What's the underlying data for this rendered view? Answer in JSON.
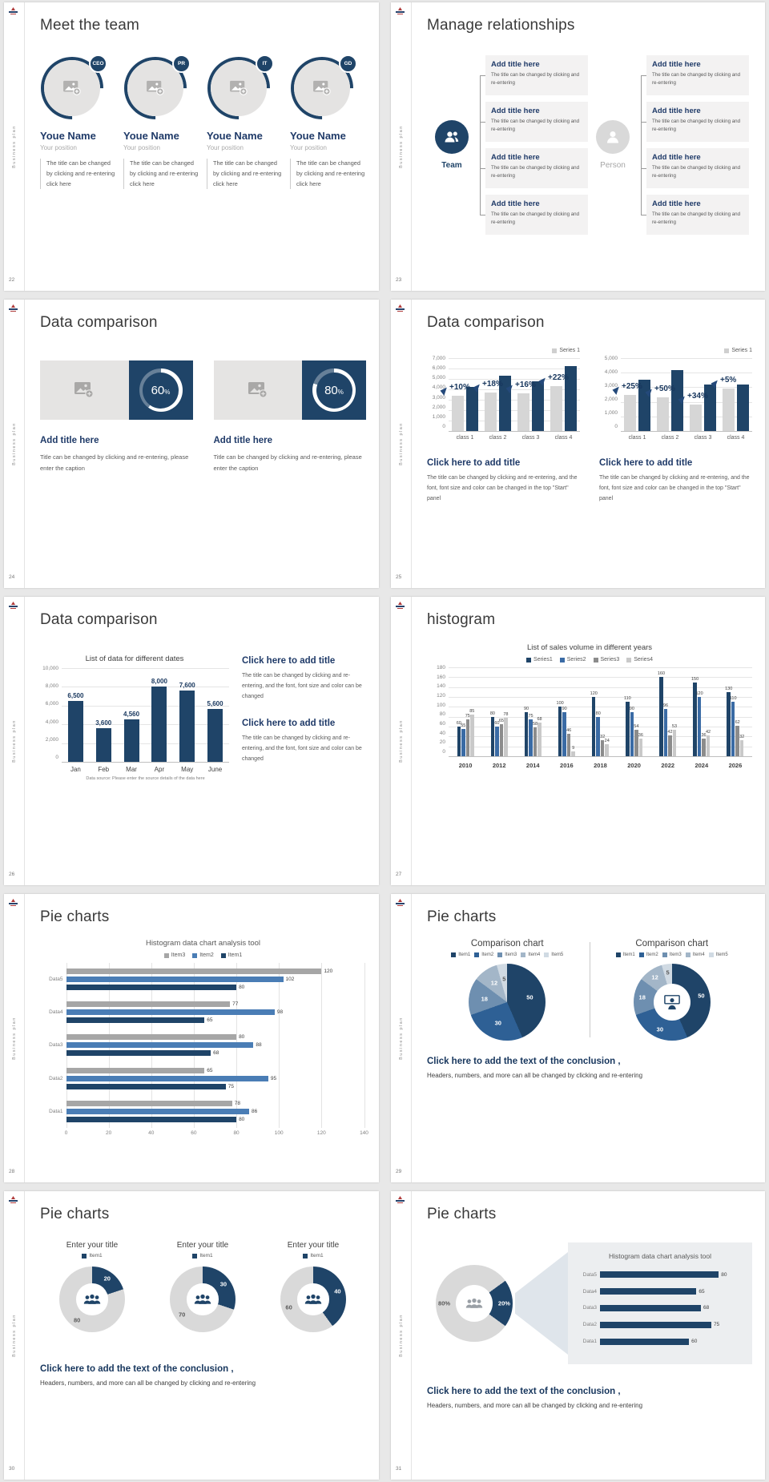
{
  "page": {
    "background": "#e8e8e8",
    "slide_background": "#ffffff"
  },
  "colors": {
    "navy": "#1f4468",
    "medblue": "#4a7db5",
    "blue2": "#2e6095",
    "gray": "#a6a6a6",
    "lightgray": "#d9d9d9",
    "heading_navy": "#1f3a68"
  },
  "sidebar": {
    "vertical_text": "Business plan"
  },
  "slides": {
    "s22": {
      "number": "22",
      "title": "Meet the team",
      "members": [
        {
          "badge": "CEO",
          "name": "Youe Name",
          "position": "Your position",
          "body": "The title can be changed by clicking and re-entering click here"
        },
        {
          "badge": "PR",
          "name": "Youe Name",
          "position": "Your position",
          "body": "The title can be changed by clicking and re-entering click here"
        },
        {
          "badge": "IT",
          "name": "Youe Name",
          "position": "Your position",
          "body": "The title can be changed by clicking and re-entering click here"
        },
        {
          "badge": "GD",
          "name": "Youe Name",
          "position": "Your position",
          "body": "The title can be changed by clicking and re-entering click here"
        }
      ]
    },
    "s23": {
      "number": "23",
      "title": "Manage relationships",
      "team_label": "Team",
      "person_label": "Person",
      "block_title": "Add title here",
      "block_body": "The title can be changed by clicking and re-entering"
    },
    "s24": {
      "number": "24",
      "title": "Data comparison",
      "cards": [
        {
          "title": "Add title here",
          "body": "Title can be changed by clicking and re-entering, please enter the caption"
        },
        {
          "title": "Add title here",
          "body": "Title can be changed by clicking and re-entering, please enter the caption"
        }
      ]
    },
    "s25": {
      "number": "25",
      "title": "Data comparison",
      "blocks": [
        {
          "title": "Click here to add title",
          "body": "The title can be changed by clicking and re-entering, and the font, font size and color can be changed in the top \"Start\" panel"
        },
        {
          "title": "Click here to add title",
          "body": "The title can be changed by clicking and re-entering, and the font, font size and color can be changed in the top \"Start\" panel"
        }
      ]
    },
    "s26": {
      "number": "26",
      "title": "Data comparison",
      "blocks": [
        {
          "title": "Click here to add title",
          "body": "The title can be changed by clicking and re-entering, and the font, font size and color can be changed"
        },
        {
          "title": "Click here to add title",
          "body": "The title can be changed by clicking and re-entering, and the font, font size and color can be changed"
        }
      ]
    },
    "s27": {
      "number": "27",
      "title": "histogram"
    },
    "s28": {
      "number": "28",
      "title": "Pie charts"
    },
    "s29": {
      "number": "29",
      "title": "Pie charts",
      "conclusion_title": "Click here to add the text of the conclusion ,",
      "conclusion_body": "Headers, numbers, and more can all be changed by clicking and re-entering"
    },
    "s30": {
      "number": "30",
      "title": "Pie charts",
      "conclusion_title": "Click here to add the text of the conclusion ,",
      "conclusion_body": "Headers, numbers, and more can all be changed by clicking and re-entering"
    },
    "s31": {
      "number": "31",
      "title": "Pie charts",
      "conclusion_title": "Click here to add the text of the conclusion ,",
      "conclusion_body": "Headers, numbers, and more can all be changed by clicking and re-entering"
    }
  },
  "chart_data": [
    {
      "id": "s24-donut-1",
      "type": "progress",
      "value": 60,
      "label": "60",
      "suffix": "%"
    },
    {
      "id": "s24-donut-2",
      "type": "progress",
      "value": 80,
      "label": "80",
      "suffix": "%"
    },
    {
      "id": "s25-chart-1",
      "type": "bar",
      "legend": [
        {
          "label": "Series 1",
          "color": "#cfcfcf"
        }
      ],
      "legend_pos": "right",
      "categories": [
        "class 1",
        "class 2",
        "class 3",
        "class 4"
      ],
      "series": [
        {
          "name": "Series 1",
          "color": "#d6d6d6",
          "values": [
            3400,
            3700,
            3600,
            4300
          ]
        },
        {
          "name": "Series 2",
          "color": "#1f4468",
          "values": [
            4200,
            5300,
            4800,
            6200
          ]
        }
      ],
      "annotations": [
        "+10%",
        "+18%",
        "+16%",
        "+22%"
      ],
      "ylim": [
        0,
        7000
      ],
      "ystep": 1000
    },
    {
      "id": "s25-chart-2",
      "type": "bar",
      "legend": [
        {
          "label": "Series 1",
          "color": "#cfcfcf"
        }
      ],
      "legend_pos": "right",
      "categories": [
        "class 1",
        "class 2",
        "class 3",
        "class 4"
      ],
      "series": [
        {
          "name": "Series 1",
          "color": "#d6d6d6",
          "values": [
            2500,
            2300,
            1800,
            2900
          ]
        },
        {
          "name": "Series 2",
          "color": "#1f4468",
          "values": [
            3500,
            4200,
            3200,
            3200
          ]
        }
      ],
      "annotations": [
        "+25%",
        "+50%",
        "+34%",
        "+5%"
      ],
      "ylim": [
        0,
        5000
      ],
      "ystep": 1000
    },
    {
      "id": "s26-chart",
      "type": "bar",
      "title": "List of data for different dates",
      "categories": [
        "Jan",
        "Feb",
        "Mar",
        "Apr",
        "May",
        "June"
      ],
      "series": [
        {
          "name": "data",
          "color": "#1f4468",
          "values": [
            6500,
            3600,
            4560,
            8000,
            7600,
            5600
          ]
        }
      ],
      "ylim": [
        0,
        10000
      ],
      "ystep": 2000,
      "data_labels": true,
      "caption": "Data source: Please enter the source details of the data here"
    },
    {
      "id": "s27-chart",
      "type": "bar",
      "title": "List of sales volume in different years",
      "legend": [
        {
          "label": "Series1",
          "color": "#1f4468"
        },
        {
          "label": "Series2",
          "color": "#3a6ba5"
        },
        {
          "label": "Series3",
          "color": "#8c8c8c"
        },
        {
          "label": "Series4",
          "color": "#c9c9c9"
        }
      ],
      "categories": [
        "2010",
        "2012",
        "2014",
        "2016",
        "2018",
        "2020",
        "2022",
        "2024",
        "2026"
      ],
      "series": [
        {
          "name": "Series1",
          "color": "#1f4468",
          "values": [
            60,
            80,
            90,
            100,
            120,
            110,
            160,
            150,
            130
          ]
        },
        {
          "name": "Series2",
          "color": "#3a6ba5",
          "values": [
            55,
            60,
            75,
            90,
            80,
            90,
            96,
            120,
            110
          ]
        },
        {
          "name": "Series3",
          "color": "#8c8c8c",
          "values": [
            75,
            65,
            58,
            46,
            32,
            54,
            42,
            36,
            62
          ]
        },
        {
          "name": "Series4",
          "color": "#c9c9c9",
          "values": [
            85,
            78,
            68,
            9,
            24,
            36,
            53,
            42,
            32
          ]
        }
      ],
      "ylim": [
        0,
        180
      ],
      "ystep": 20,
      "data_labels": true
    },
    {
      "id": "s28-chart",
      "type": "hbar",
      "title": "Histogram data chart analysis tool",
      "legend": [
        {
          "label": "Item3",
          "color": "#a6a6a6"
        },
        {
          "label": "Item2",
          "color": "#4a7db5"
        },
        {
          "label": "Item1",
          "color": "#1f4468"
        }
      ],
      "categories": [
        "Data5",
        "Data4",
        "Data3",
        "Data2",
        "Data1"
      ],
      "series": [
        {
          "name": "Item3",
          "color": "#a6a6a6",
          "values": [
            120,
            77,
            80,
            65,
            78
          ]
        },
        {
          "name": "Item2",
          "color": "#4a7db5",
          "values": [
            102,
            98,
            88,
            95,
            86
          ]
        },
        {
          "name": "Item1",
          "color": "#1f4468",
          "values": [
            80,
            65,
            68,
            75,
            80
          ]
        }
      ],
      "xlim": [
        0,
        140
      ],
      "xstep": 20,
      "data_labels": true
    },
    {
      "id": "s29-pie",
      "type": "pie",
      "title": "Comparison chart",
      "legend": [
        {
          "label": "Item1",
          "color": "#1f4468"
        },
        {
          "label": "Item2",
          "color": "#2e6095"
        },
        {
          "label": "Item3",
          "color": "#6e8fb0"
        },
        {
          "label": "Item4",
          "color": "#a3b6c8"
        },
        {
          "label": "Item5",
          "color": "#d0dae3"
        }
      ],
      "values": [
        50,
        30,
        18,
        12,
        5
      ],
      "colors": [
        "#1f4468",
        "#2e6095",
        "#6e8fb0",
        "#a3b6c8",
        "#d0dae3"
      ],
      "label_colors": [
        "#fff",
        "#fff",
        "#fff",
        "#fff",
        "#595959"
      ],
      "data_labels": true
    },
    {
      "id": "s29-donut",
      "type": "pie",
      "donut": true,
      "title": "Comparison chart",
      "legend": [
        {
          "label": "Item1",
          "color": "#1f4468"
        },
        {
          "label": "Item2",
          "color": "#2e6095"
        },
        {
          "label": "Item3",
          "color": "#6e8fb0"
        },
        {
          "label": "Item4",
          "color": "#a3b6c8"
        },
        {
          "label": "Item5",
          "color": "#d0dae3"
        }
      ],
      "values": [
        50,
        30,
        18,
        12,
        5
      ],
      "colors": [
        "#1f4468",
        "#2e6095",
        "#6e8fb0",
        "#a3b6c8",
        "#d0dae3"
      ],
      "label_colors": [
        "#fff",
        "#fff",
        "#fff",
        "#fff",
        "#595959"
      ],
      "center_icon": "presenter",
      "center_icon_color": "#1f4468",
      "data_labels": true
    },
    {
      "id": "s30-donut-1",
      "type": "pie",
      "donut": true,
      "title": "Enter your title",
      "legend": [
        {
          "label": "Item1",
          "color": "#1f4468"
        }
      ],
      "values": [
        20,
        80
      ],
      "colors": [
        "#1f4468",
        "#d9d9d9"
      ],
      "label_colors": [
        "#fff",
        "#595959"
      ],
      "center_icon": "people",
      "center_icon_color": "#1f4468",
      "data_labels": true
    },
    {
      "id": "s30-donut-2",
      "type": "pie",
      "donut": true,
      "title": "Enter your title",
      "legend": [
        {
          "label": "Item1",
          "color": "#1f4468"
        }
      ],
      "values": [
        30,
        70
      ],
      "colors": [
        "#1f4468",
        "#d9d9d9"
      ],
      "label_colors": [
        "#fff",
        "#595959"
      ],
      "center_icon": "people",
      "center_icon_color": "#1f4468",
      "data_labels": true
    },
    {
      "id": "s30-donut-3",
      "type": "pie",
      "donut": true,
      "title": "Enter your title",
      "legend": [
        {
          "label": "Item1",
          "color": "#1f4468"
        }
      ],
      "values": [
        40,
        60
      ],
      "colors": [
        "#1f4468",
        "#d9d9d9"
      ],
      "label_colors": [
        "#fff",
        "#595959"
      ],
      "center_icon": "people",
      "center_icon_color": "#1f4468",
      "data_labels": true
    },
    {
      "id": "s31-donut",
      "type": "pie",
      "donut": true,
      "values": [
        20,
        80
      ],
      "display_labels": [
        "20%",
        "80%"
      ],
      "colors": [
        "#1f4468",
        "#d9d9d9"
      ],
      "label_colors": [
        "#fff",
        "#595959"
      ],
      "rotate": 54,
      "center_icon": "people",
      "center_icon_color": "#9aa0a6",
      "data_labels": true
    },
    {
      "id": "s31-hbar",
      "type": "hbar",
      "title": "Histogram data chart analysis tool",
      "categories": [
        "Data5",
        "Data4",
        "Data3",
        "Data2",
        "Data1"
      ],
      "series": [
        {
          "name": "data",
          "color": "#1f4468",
          "values": [
            80,
            65,
            68,
            75,
            60
          ]
        }
      ],
      "xlim": [
        0,
        95
      ],
      "data_labels": true
    }
  ]
}
